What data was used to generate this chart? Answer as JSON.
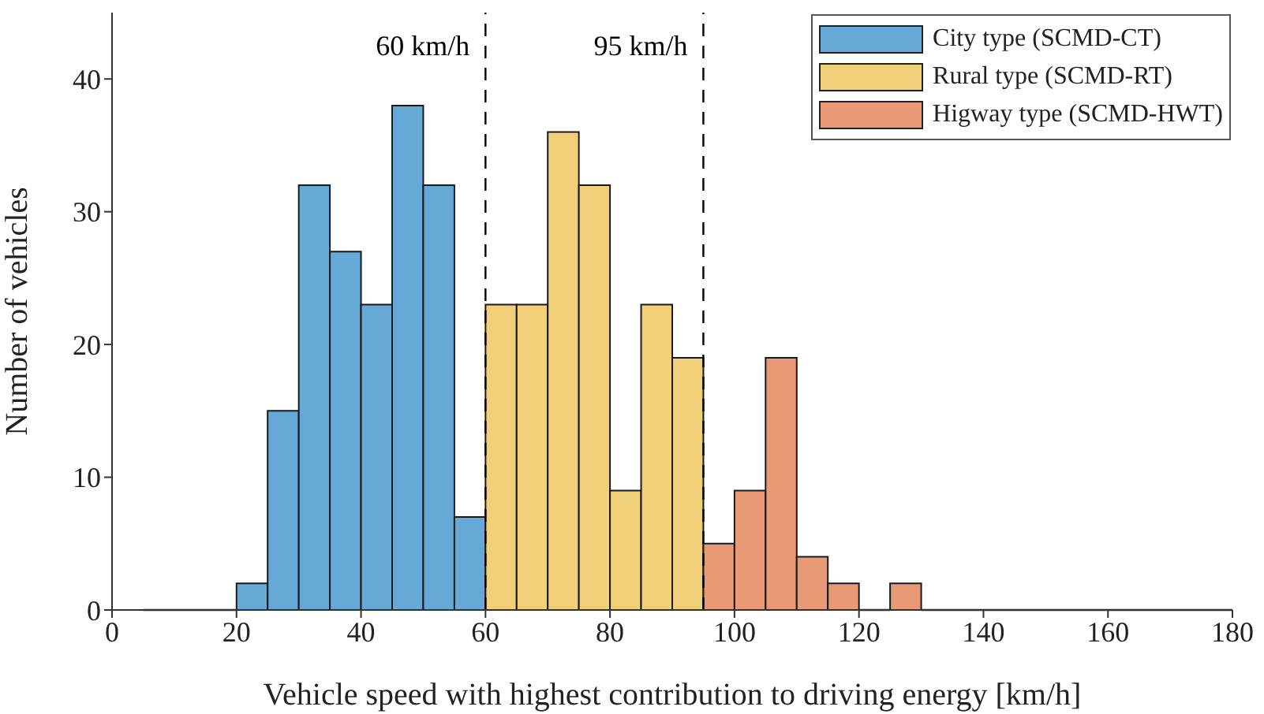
{
  "chart_data": {
    "type": "histogram",
    "xlabel": "Vehicle speed with highest contribution to driving energy [km/h]",
    "ylabel": "Number of vehicles",
    "bins": [
      5,
      10,
      15,
      20,
      25,
      30,
      35,
      40,
      45,
      50,
      55,
      60,
      65,
      70,
      75,
      80,
      85,
      90,
      95,
      100,
      105,
      110,
      115,
      120,
      125,
      130,
      135,
      140,
      145,
      150,
      155,
      160,
      165,
      170,
      175,
      180
    ],
    "series": [
      {
        "name": "City type (SCMD-CT)",
        "color": "#66a9d7",
        "values": [
          0,
          0,
          0,
          2,
          15,
          32,
          27,
          23,
          38,
          32,
          7,
          null,
          null,
          null,
          null,
          null,
          null,
          null,
          null,
          null,
          null,
          null,
          null,
          null,
          null,
          null,
          null,
          null,
          null,
          null,
          null,
          null,
          null,
          null,
          null
        ]
      },
      {
        "name": "Rural type (SCMD-RT)",
        "color": "#f2d07a",
        "values": [
          null,
          null,
          null,
          null,
          null,
          null,
          null,
          null,
          null,
          null,
          null,
          23,
          23,
          36,
          32,
          9,
          23,
          19,
          null,
          null,
          null,
          null,
          null,
          null,
          null,
          null,
          null,
          null,
          null,
          null,
          null,
          null,
          null,
          null,
          null
        ]
      },
      {
        "name": "Higway type (SCMD-HWT)",
        "color": "#e89a76",
        "values": [
          null,
          null,
          null,
          null,
          null,
          null,
          null,
          null,
          null,
          null,
          null,
          null,
          null,
          null,
          null,
          null,
          null,
          null,
          5,
          9,
          19,
          4,
          2,
          0,
          2,
          0,
          0,
          0,
          0,
          0,
          0,
          0,
          0,
          0,
          0
        ]
      }
    ],
    "xlim": [
      0,
      180
    ],
    "xticks": [
      0,
      20,
      40,
      60,
      80,
      100,
      120,
      140,
      160,
      180
    ],
    "ylim": [
      0,
      45
    ],
    "yticks": [
      0,
      10,
      20,
      30,
      40
    ],
    "ref_lines": [
      {
        "axis": "x",
        "value": 60,
        "label": "60 km/h",
        "line_style": "dashed",
        "color": "#000000"
      },
      {
        "axis": "x",
        "value": 95,
        "label": "95 km/h",
        "line_style": "dashed",
        "color": "#000000"
      }
    ],
    "grid": false,
    "legend": "top right"
  }
}
